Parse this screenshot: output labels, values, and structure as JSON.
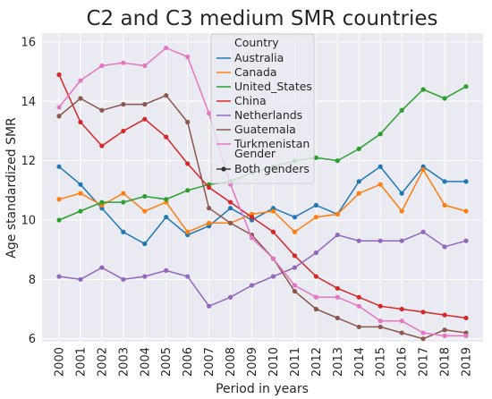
{
  "chart_data": {
    "type": "line",
    "title": "C2 and C3 medium SMR countries",
    "xlabel": "Period in years",
    "ylabel": "Age standardized SMR",
    "x": [
      2000,
      2001,
      2002,
      2003,
      2004,
      2005,
      2006,
      2007,
      2008,
      2009,
      2010,
      2011,
      2012,
      2013,
      2014,
      2015,
      2016,
      2017,
      2018,
      2019
    ],
    "x_tick_labels": [
      "2000",
      "2001",
      "2002",
      "2003",
      "2004",
      "2005",
      "2006",
      "2007",
      "2008",
      "2009",
      "2010",
      "2011",
      "2012",
      "2013",
      "2014",
      "2015",
      "2016",
      "2017",
      "2018",
      "2019"
    ],
    "ylim": [
      5.9,
      16.3
    ],
    "y_ticks": [
      6,
      8,
      10,
      12,
      14,
      16
    ],
    "y_tick_labels": [
      "6",
      "8",
      "10",
      "12",
      "14",
      "16"
    ],
    "grid": true,
    "legend": {
      "placement": "top-center",
      "hue_title": "Country",
      "style_title": "Gender",
      "style_entries": [
        "Both genders"
      ]
    },
    "series": [
      {
        "name": "Australia",
        "color": "#1f77b4",
        "values": [
          11.8,
          11.2,
          10.4,
          9.6,
          9.2,
          10.1,
          9.5,
          9.8,
          10.4,
          10.0,
          10.4,
          10.1,
          10.5,
          10.2,
          11.3,
          11.8,
          10.9,
          11.8,
          11.3,
          11.3
        ]
      },
      {
        "name": "Canada",
        "color": "#ff7f0e",
        "values": [
          10.7,
          10.9,
          10.5,
          10.9,
          10.3,
          10.6,
          9.6,
          9.9,
          9.9,
          10.2,
          10.3,
          9.6,
          10.1,
          10.2,
          10.9,
          11.2,
          10.3,
          11.7,
          10.5,
          10.3
        ]
      },
      {
        "name": "United_States",
        "color": "#2ca02c",
        "values": [
          10.0,
          10.3,
          10.6,
          10.6,
          10.8,
          10.7,
          11.0,
          11.2,
          11.3,
          11.6,
          11.8,
          12.0,
          12.1,
          12.0,
          12.4,
          12.9,
          13.7,
          14.4,
          14.1,
          14.5
        ]
      },
      {
        "name": "China",
        "color": "#d62728",
        "values": [
          14.9,
          13.3,
          12.5,
          13.0,
          13.4,
          12.8,
          11.9,
          11.1,
          10.6,
          10.1,
          9.6,
          8.8,
          8.1,
          7.7,
          7.4,
          7.1,
          7.0,
          6.9,
          6.8,
          6.7
        ]
      },
      {
        "name": "Netherlands",
        "color": "#9467bd",
        "values": [
          8.1,
          8.0,
          8.4,
          8.0,
          8.1,
          8.3,
          8.1,
          7.1,
          7.4,
          7.8,
          8.1,
          8.4,
          8.9,
          9.5,
          9.3,
          9.3,
          9.3,
          9.6,
          9.1,
          9.3
        ]
      },
      {
        "name": "Guatemala",
        "color": "#8c564b",
        "values": [
          13.5,
          14.1,
          13.7,
          13.9,
          13.9,
          14.2,
          13.3,
          10.4,
          9.9,
          9.5,
          8.7,
          7.6,
          7.0,
          6.7,
          6.4,
          6.4,
          6.2,
          6.0,
          6.3,
          6.2
        ]
      },
      {
        "name": "Turkmenistan",
        "color": "#e377c2",
        "values": [
          13.8,
          14.7,
          15.2,
          15.3,
          15.2,
          15.8,
          15.5,
          13.6,
          11.2,
          9.4,
          8.7,
          7.8,
          7.4,
          7.4,
          7.1,
          6.6,
          6.6,
          6.2,
          6.1,
          6.1
        ]
      }
    ]
  }
}
